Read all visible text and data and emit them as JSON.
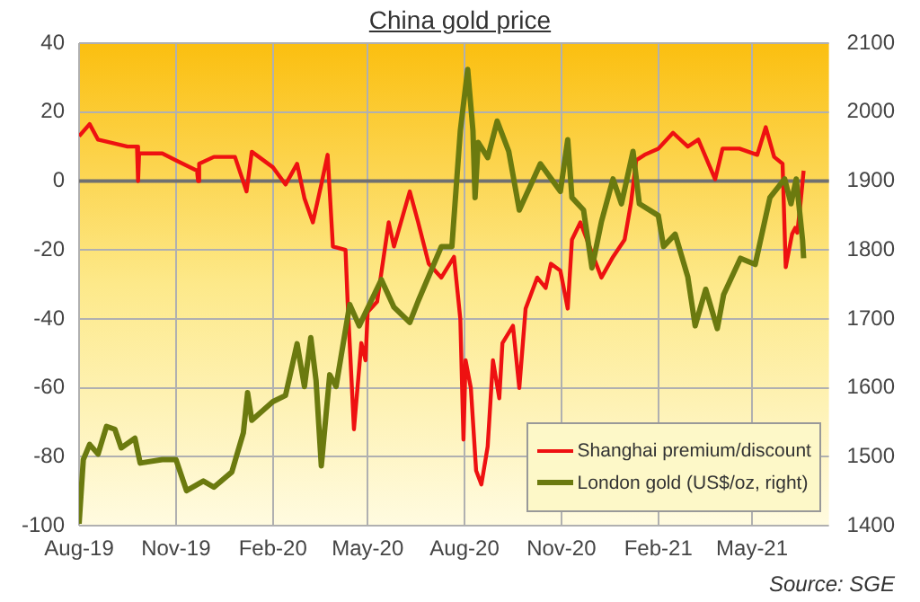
{
  "chart_data": {
    "type": "line",
    "title": "China gold price",
    "annotations": [
      "Source: SGE"
    ],
    "xlim": [
      "2019-08-01",
      "2021-07-13"
    ],
    "xticks": [
      {
        "value": "2019-08-01",
        "label": "Aug-19"
      },
      {
        "value": "2019-11-01",
        "label": "Nov-19"
      },
      {
        "value": "2020-02-01",
        "label": "Feb-20"
      },
      {
        "value": "2020-05-01",
        "label": "May-20"
      },
      {
        "value": "2020-08-01",
        "label": "Aug-20"
      },
      {
        "value": "2020-11-01",
        "label": "Nov-20"
      },
      {
        "value": "2021-02-01",
        "label": "Feb-21"
      },
      {
        "value": "2021-05-01",
        "label": "May-21"
      }
    ],
    "ylim": [
      -100,
      40
    ],
    "yticks": [
      -100,
      -80,
      -60,
      -40,
      -20,
      0,
      20,
      40
    ],
    "y2lim": [
      1400,
      2100
    ],
    "y2ticks": [
      1400,
      1500,
      1600,
      1700,
      1800,
      1900,
      2000,
      2100
    ],
    "grid": true,
    "legend": "bottom right",
    "marker": "none",
    "line_style": "solid",
    "ref_lines": [
      {
        "axis": "y",
        "value": 0,
        "color": "#707070"
      }
    ],
    "series": [
      {
        "name": "Shanghai premium/discount",
        "color": "#ee1111",
        "axis": "y",
        "x": [
          "2019-08-01",
          "2019-08-11",
          "2019-08-19",
          "2019-09-16",
          "2019-09-25",
          "2019-09-26",
          "2019-09-27",
          "2019-10-19",
          "2019-11-01",
          "2019-11-21",
          "2019-11-22",
          "2019-11-23",
          "2019-12-07",
          "2019-12-27",
          "2020-01-07",
          "2020-01-12",
          "2020-02-01",
          "2020-02-13",
          "2020-02-24",
          "2020-03-02",
          "2020-03-10",
          "2020-03-18",
          "2020-03-24",
          "2020-03-29",
          "2020-04-10",
          "2020-04-12",
          "2020-04-18",
          "2020-04-25",
          "2020-04-29",
          "2020-05-01",
          "2020-05-10",
          "2020-05-21",
          "2020-05-26",
          "2020-06-10",
          "2020-06-18",
          "2020-06-28",
          "2020-07-10",
          "2020-07-22",
          "2020-07-28",
          "2020-07-31",
          "2020-08-02",
          "2020-08-07",
          "2020-08-12",
          "2020-08-17",
          "2020-08-23",
          "2020-08-28",
          "2020-09-03",
          "2020-09-06",
          "2020-09-16",
          "2020-09-22",
          "2020-09-28",
          "2020-10-09",
          "2020-10-17",
          "2020-10-22",
          "2020-10-31",
          "2020-11-07",
          "2020-11-11",
          "2020-11-19",
          "2020-12-09",
          "2020-12-20",
          "2020-12-31",
          "2021-01-06",
          "2021-01-11",
          "2021-01-19",
          "2021-02-01",
          "2021-02-15",
          "2021-03-01",
          "2021-03-11",
          "2021-03-27",
          "2021-04-03",
          "2021-04-19",
          "2021-05-06",
          "2021-05-14",
          "2021-05-22",
          "2021-05-30",
          "2021-06-02",
          "2021-06-08",
          "2021-06-11",
          "2021-06-13",
          "2021-06-16",
          "2021-06-19"
        ],
        "values": [
          13,
          16.5,
          12,
          10,
          10,
          0,
          8,
          8,
          6,
          3,
          0,
          5,
          7,
          7,
          -3,
          8.5,
          4,
          -1,
          5,
          -5,
          -12,
          -1,
          7.6,
          -19,
          -20,
          -35,
          -72,
          -47,
          -52,
          -38,
          -35,
          -12,
          -19,
          -3,
          -12,
          -24,
          -28,
          -22,
          -40,
          -75,
          -52,
          -60,
          -84,
          -88,
          -77,
          -52,
          -63,
          -47,
          -42,
          -60,
          -37,
          -28,
          -31,
          -24,
          -26,
          -37,
          -17,
          -12,
          -28,
          -22,
          -17,
          -6.5,
          6,
          7.6,
          9.4,
          14,
          10,
          12,
          0.5,
          9.4,
          9.4,
          7.6,
          15.6,
          7,
          5,
          -25,
          -15.4,
          -13.6,
          -15,
          -6.5,
          3
        ]
      },
      {
        "name": "London gold (US$/oz, right)",
        "color": "#6b7a0f",
        "axis": "y2",
        "x": [
          "2019-08-01",
          "2019-08-05",
          "2019-08-11",
          "2019-08-19",
          "2019-08-27",
          "2019-09-04",
          "2019-09-10",
          "2019-09-23",
          "2019-09-28",
          "2019-10-19",
          "2019-11-01",
          "2019-11-11",
          "2019-11-27",
          "2019-12-07",
          "2019-12-24",
          "2020-01-04",
          "2020-01-08",
          "2020-01-12",
          "2020-02-01",
          "2020-02-13",
          "2020-02-24",
          "2020-03-02",
          "2020-03-08",
          "2020-03-13",
          "2020-03-18",
          "2020-03-26",
          "2020-04-01",
          "2020-04-14",
          "2020-04-23",
          "2020-05-14",
          "2020-05-26",
          "2020-06-10",
          "2020-06-18",
          "2020-07-10",
          "2020-07-20",
          "2020-07-28",
          "2020-08-04",
          "2020-08-09",
          "2020-08-11",
          "2020-08-14",
          "2020-08-23",
          "2020-09-01",
          "2020-09-12",
          "2020-09-22",
          "2020-10-04",
          "2020-10-12",
          "2020-10-31",
          "2020-11-07",
          "2020-11-11",
          "2020-11-22",
          "2020-11-30",
          "2020-12-09",
          "2020-12-20",
          "2020-12-28",
          "2021-01-08",
          "2021-01-14",
          "2021-02-01",
          "2021-02-06",
          "2021-02-17",
          "2021-03-01",
          "2021-03-08",
          "2021-03-18",
          "2021-03-29",
          "2021-04-04",
          "2021-04-20",
          "2021-05-04",
          "2021-05-18",
          "2021-06-01",
          "2021-06-07",
          "2021-06-12",
          "2021-06-18",
          "2021-06-19"
        ],
        "values": [
          1403,
          1496,
          1518,
          1504,
          1544,
          1540,
          1513,
          1527,
          1491,
          1496,
          1496,
          1451,
          1465,
          1456,
          1478,
          1535,
          1593,
          1553,
          1580,
          1589,
          1664,
          1602,
          1673,
          1611,
          1487,
          1619,
          1602,
          1721,
          1690,
          1757,
          1717,
          1695,
          1726,
          1805,
          1805,
          1973,
          2062,
          1973,
          1876,
          1956,
          1934,
          1987,
          1943,
          1858,
          1898,
          1925,
          1885,
          1960,
          1876,
          1858,
          1774,
          1841,
          1903,
          1867,
          1943,
          1867,
          1850,
          1805,
          1823,
          1761,
          1690,
          1743,
          1686,
          1735,
          1788,
          1779,
          1876,
          1903,
          1867,
          1903,
          1814,
          1788
        ]
      }
    ]
  }
}
